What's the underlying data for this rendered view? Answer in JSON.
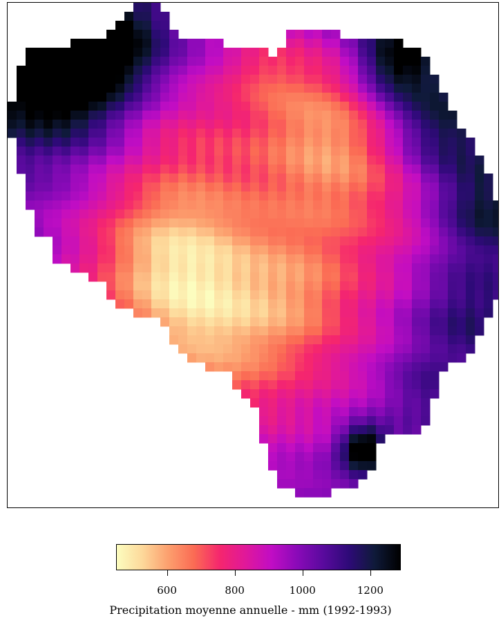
{
  "legend": {
    "title": "Precipitation moyenne annuelle - mm (1992-1993)",
    "min": 450,
    "max": 1290,
    "ticks": [
      600,
      800,
      1000,
      1200
    ],
    "color_stops": [
      "#fcfdbf",
      "#fdd89a",
      "#fc9f6e",
      "#fb6b54",
      "#f5266e",
      "#e0189a",
      "#c10dc4",
      "#8a0ab8",
      "#5a0a9e",
      "#2e0a78",
      "#0f1a3a",
      "#000000"
    ]
  }
}
